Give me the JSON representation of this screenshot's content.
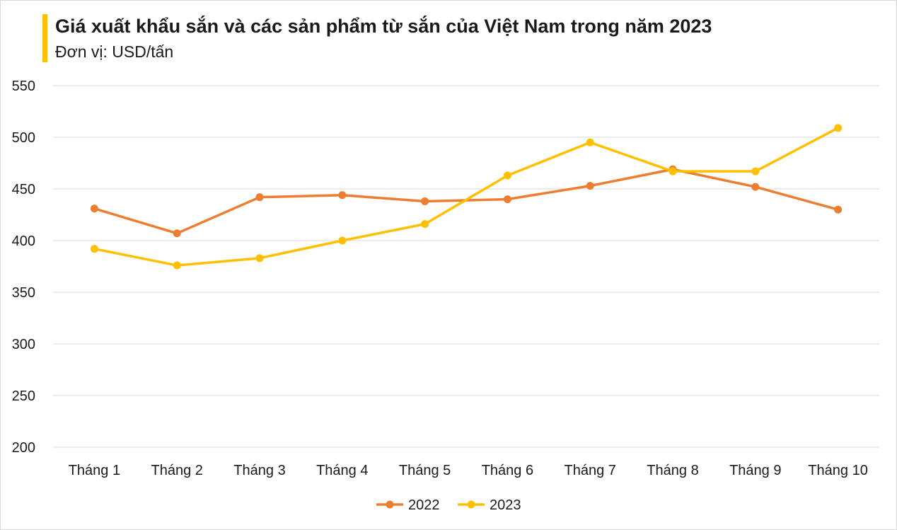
{
  "header": {
    "title": "Giá xuất khẩu sắn và các sản phẩm từ sắn của Việt Nam trong năm 2023",
    "subtitle": "Đơn vị: USD/tấn",
    "accent_color": "#FFC000"
  },
  "chart_data": {
    "type": "line",
    "title": "Giá xuất khẩu sắn và các sản phẩm từ sắn của Việt Nam trong năm 2023",
    "subtitle": "Đơn vị: USD/tấn",
    "categories": [
      "Tháng 1",
      "Tháng 2",
      "Tháng 3",
      "Tháng 4",
      "Tháng 5",
      "Tháng 6",
      "Tháng 7",
      "Tháng 8",
      "Tháng 9",
      "Tháng 10"
    ],
    "series": [
      {
        "name": "2022",
        "color": "#ED7D31",
        "values": [
          431,
          407,
          442,
          444,
          438,
          440,
          453,
          469,
          452,
          430
        ]
      },
      {
        "name": "2023",
        "color": "#FFC000",
        "values": [
          392,
          376,
          383,
          400,
          416,
          463,
          495,
          467,
          467,
          509
        ]
      }
    ],
    "ylim": [
      200,
      550
    ],
    "yticks": [
      200,
      250,
      300,
      350,
      400,
      450,
      500,
      550
    ],
    "grid": true,
    "legend": "bottom-center"
  }
}
